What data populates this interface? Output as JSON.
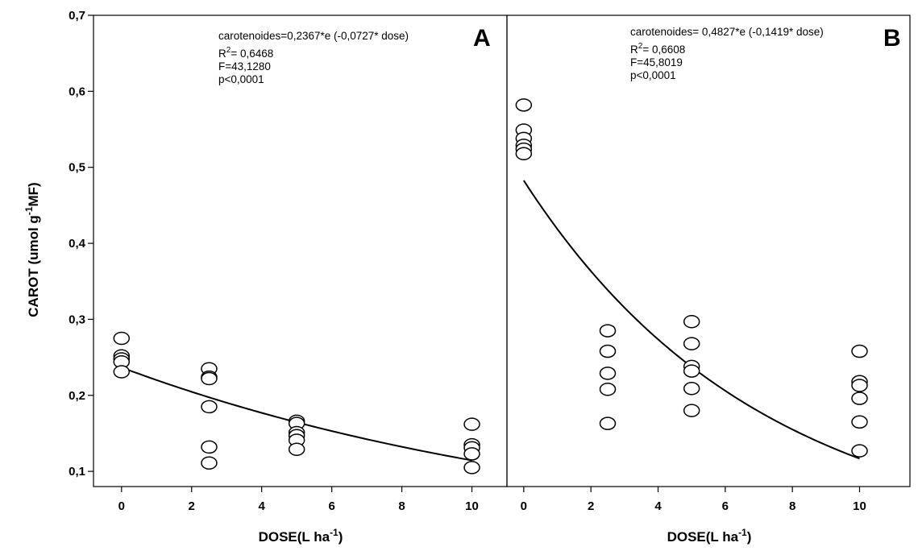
{
  "chart_data": [
    {
      "type": "scatter",
      "panel_label": "A",
      "xlabel": "DOSE(L ha",
      "xlabel_sup": "-1",
      "xlabel_end": ")",
      "ylabel": "CAROT  (umol g",
      "ylabel_sup": "-1",
      "ylabel_end": "MF)",
      "xlim": [
        -0.8,
        11
      ],
      "ylim": [
        0.08,
        0.7
      ],
      "x_ticks": [
        0,
        2,
        4,
        6,
        8,
        10
      ],
      "x_tick_labels": [
        "0",
        "2",
        "4",
        "6",
        "8",
        "10"
      ],
      "y_ticks": [
        0.1,
        0.2,
        0.3,
        0.4,
        0.5,
        0.6,
        0.7
      ],
      "y_tick_labels": [
        "0,1",
        "0,2",
        "0,3",
        "0,4",
        "0,5",
        "0,6",
        "0,7"
      ],
      "grid": false,
      "points": [
        {
          "x": 0,
          "y": 0.275
        },
        {
          "x": 0,
          "y": 0.252
        },
        {
          "x": 0,
          "y": 0.248
        },
        {
          "x": 0,
          "y": 0.244
        },
        {
          "x": 0,
          "y": 0.231
        },
        {
          "x": 2.5,
          "y": 0.235
        },
        {
          "x": 2.5,
          "y": 0.224
        },
        {
          "x": 2.5,
          "y": 0.222
        },
        {
          "x": 2.5,
          "y": 0.185
        },
        {
          "x": 2.5,
          "y": 0.132
        },
        {
          "x": 2.5,
          "y": 0.111
        },
        {
          "x": 5,
          "y": 0.166
        },
        {
          "x": 5,
          "y": 0.163
        },
        {
          "x": 5,
          "y": 0.151
        },
        {
          "x": 5,
          "y": 0.147
        },
        {
          "x": 5,
          "y": 0.141
        },
        {
          "x": 5,
          "y": 0.129
        },
        {
          "x": 10,
          "y": 0.162
        },
        {
          "x": 10,
          "y": 0.135
        },
        {
          "x": 10,
          "y": 0.131
        },
        {
          "x": 10,
          "y": 0.123
        },
        {
          "x": 10,
          "y": 0.105
        }
      ],
      "fit": {
        "a": 0.2367,
        "b": -0.0727,
        "x_range": [
          0,
          10
        ]
      },
      "annotations": {
        "equation": "carotenoides=0,2367*e (-0,0727* dose)",
        "r2_prefix": "R",
        "r2_sup": "2",
        "r2_value": "= 0,6468",
        "f": "F=43,1280",
        "p": "p<0,0001"
      }
    },
    {
      "type": "scatter",
      "panel_label": "B",
      "xlabel": "DOSE(L ha",
      "xlabel_sup": "-1",
      "xlabel_end": ")",
      "xlim": [
        -0.5,
        11.5
      ],
      "ylim": [
        0.08,
        0.7
      ],
      "x_ticks": [
        0,
        2,
        4,
        6,
        8,
        10
      ],
      "x_tick_labels": [
        "0",
        "2",
        "4",
        "6",
        "8",
        "10"
      ],
      "y_ticks": [
        0.1,
        0.2,
        0.3,
        0.4,
        0.5,
        0.6,
        0.7
      ],
      "grid": false,
      "points": [
        {
          "x": 0,
          "y": 0.582
        },
        {
          "x": 0,
          "y": 0.549
        },
        {
          "x": 0,
          "y": 0.538
        },
        {
          "x": 0,
          "y": 0.529
        },
        {
          "x": 0,
          "y": 0.524
        },
        {
          "x": 0,
          "y": 0.518
        },
        {
          "x": 2.5,
          "y": 0.285
        },
        {
          "x": 2.5,
          "y": 0.258
        },
        {
          "x": 2.5,
          "y": 0.229
        },
        {
          "x": 2.5,
          "y": 0.208
        },
        {
          "x": 2.5,
          "y": 0.163
        },
        {
          "x": 5,
          "y": 0.297
        },
        {
          "x": 5,
          "y": 0.268
        },
        {
          "x": 5,
          "y": 0.238
        },
        {
          "x": 5,
          "y": 0.232
        },
        {
          "x": 5,
          "y": 0.209
        },
        {
          "x": 5,
          "y": 0.18
        },
        {
          "x": 10,
          "y": 0.258
        },
        {
          "x": 10,
          "y": 0.218
        },
        {
          "x": 10,
          "y": 0.213
        },
        {
          "x": 10,
          "y": 0.196
        },
        {
          "x": 10,
          "y": 0.165
        },
        {
          "x": 10,
          "y": 0.127
        }
      ],
      "fit": {
        "a": 0.4827,
        "b": -0.1419,
        "x_range": [
          0,
          10
        ]
      },
      "annotations": {
        "equation": "carotenoides= 0,4827*e (-0,1419* dose)",
        "r2_prefix": "R",
        "r2_sup": "2",
        "r2_value": "= 0,6608",
        "f": "F=45,8019",
        "p": "p<0,0001"
      }
    }
  ]
}
